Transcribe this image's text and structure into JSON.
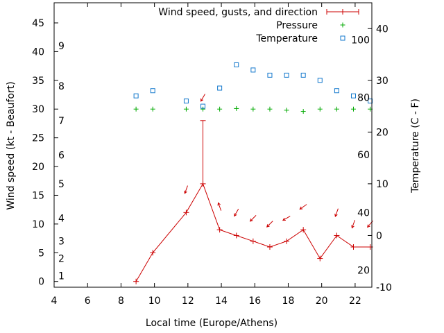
{
  "chart_data": {
    "type": "line",
    "xlabel": "Local time (Europe/Athens)",
    "ylabel": "Wind speed (kt - Beaufort)",
    "y2label": "Temperature (C - F)",
    "xlim": [
      4,
      23
    ],
    "ylim": [
      -1,
      48.5
    ],
    "y2lim": [
      -10,
      45
    ],
    "xticks": [
      4,
      6,
      8,
      10,
      12,
      14,
      16,
      18,
      20,
      22
    ],
    "yticks": [
      0,
      5,
      10,
      15,
      20,
      25,
      30,
      35,
      40,
      45
    ],
    "y2ticks": [
      -10,
      0,
      10,
      20,
      30,
      40
    ],
    "beaufort_labels": [
      {
        "label": "1",
        "y": 1
      },
      {
        "label": "2",
        "y": 4
      },
      {
        "label": "3",
        "y": 7
      },
      {
        "label": "4",
        "y": 11
      },
      {
        "label": "5",
        "y": 17
      },
      {
        "label": "6",
        "y": 22
      },
      {
        "label": "7",
        "y": 28
      },
      {
        "label": "8",
        "y": 34
      },
      {
        "label": "9",
        "y": 41
      }
    ],
    "fahrenheit_labels": [
      {
        "label": "20",
        "y2": -6.7
      },
      {
        "label": "40",
        "y2": 4.4
      },
      {
        "label": "60",
        "y2": 15.6
      },
      {
        "label": "80",
        "y2": 26.7
      },
      {
        "label": "100",
        "y2": 37.8
      }
    ],
    "legend_position": "top-right",
    "series": [
      {
        "name": "Wind speed, gusts, and direction",
        "color": "#cc0000",
        "x": [
          8.9,
          9.9,
          11.9,
          12.9,
          13.9,
          14.9,
          15.9,
          16.9,
          17.9,
          18.9,
          19.9,
          20.9,
          21.9,
          22.9
        ],
        "values": [
          0,
          5,
          12,
          17,
          9,
          8,
          7,
          6,
          7,
          9,
          4,
          8,
          6,
          6
        ],
        "gusts": [
          {
            "x": 12.9,
            "low": 17,
            "high": 28
          }
        ],
        "direction_arrows": [
          {
            "x": 11.9,
            "y": 16,
            "angle": 110
          },
          {
            "x": 12.9,
            "y": 32,
            "angle": 120
          },
          {
            "x": 13.9,
            "y": 13,
            "angle": 250
          },
          {
            "x": 14.9,
            "y": 12,
            "angle": 120
          },
          {
            "x": 15.9,
            "y": 11,
            "angle": 135
          },
          {
            "x": 16.9,
            "y": 10,
            "angle": 135
          },
          {
            "x": 17.9,
            "y": 11,
            "angle": 150
          },
          {
            "x": 18.9,
            "y": 13,
            "angle": 145
          },
          {
            "x": 20.9,
            "y": 12,
            "angle": 110
          },
          {
            "x": 21.9,
            "y": 10,
            "angle": 110
          },
          {
            "x": 22.9,
            "y": 10,
            "angle": 130
          }
        ]
      },
      {
        "name": "Pressure",
        "color": "#00aa00",
        "x": [
          8.9,
          9.9,
          11.9,
          12.9,
          13.9,
          14.9,
          15.9,
          16.9,
          17.9,
          18.9,
          19.9,
          20.9,
          21.9,
          22.9
        ],
        "values": [
          30,
          30,
          30,
          30,
          30,
          30.1,
          30,
          30,
          29.8,
          29.6,
          30,
          30,
          30,
          30
        ]
      },
      {
        "name": "Temperature",
        "color": "#1177cc",
        "axis": "y2",
        "x": [
          8.9,
          9.9,
          11.9,
          12.9,
          13.9,
          14.9,
          15.9,
          16.9,
          17.9,
          18.9,
          19.9,
          20.9,
          21.9,
          22.9
        ],
        "values": [
          27,
          28,
          26,
          25,
          28.5,
          33,
          32,
          31,
          31,
          31,
          30,
          28,
          27,
          26
        ]
      }
    ]
  }
}
